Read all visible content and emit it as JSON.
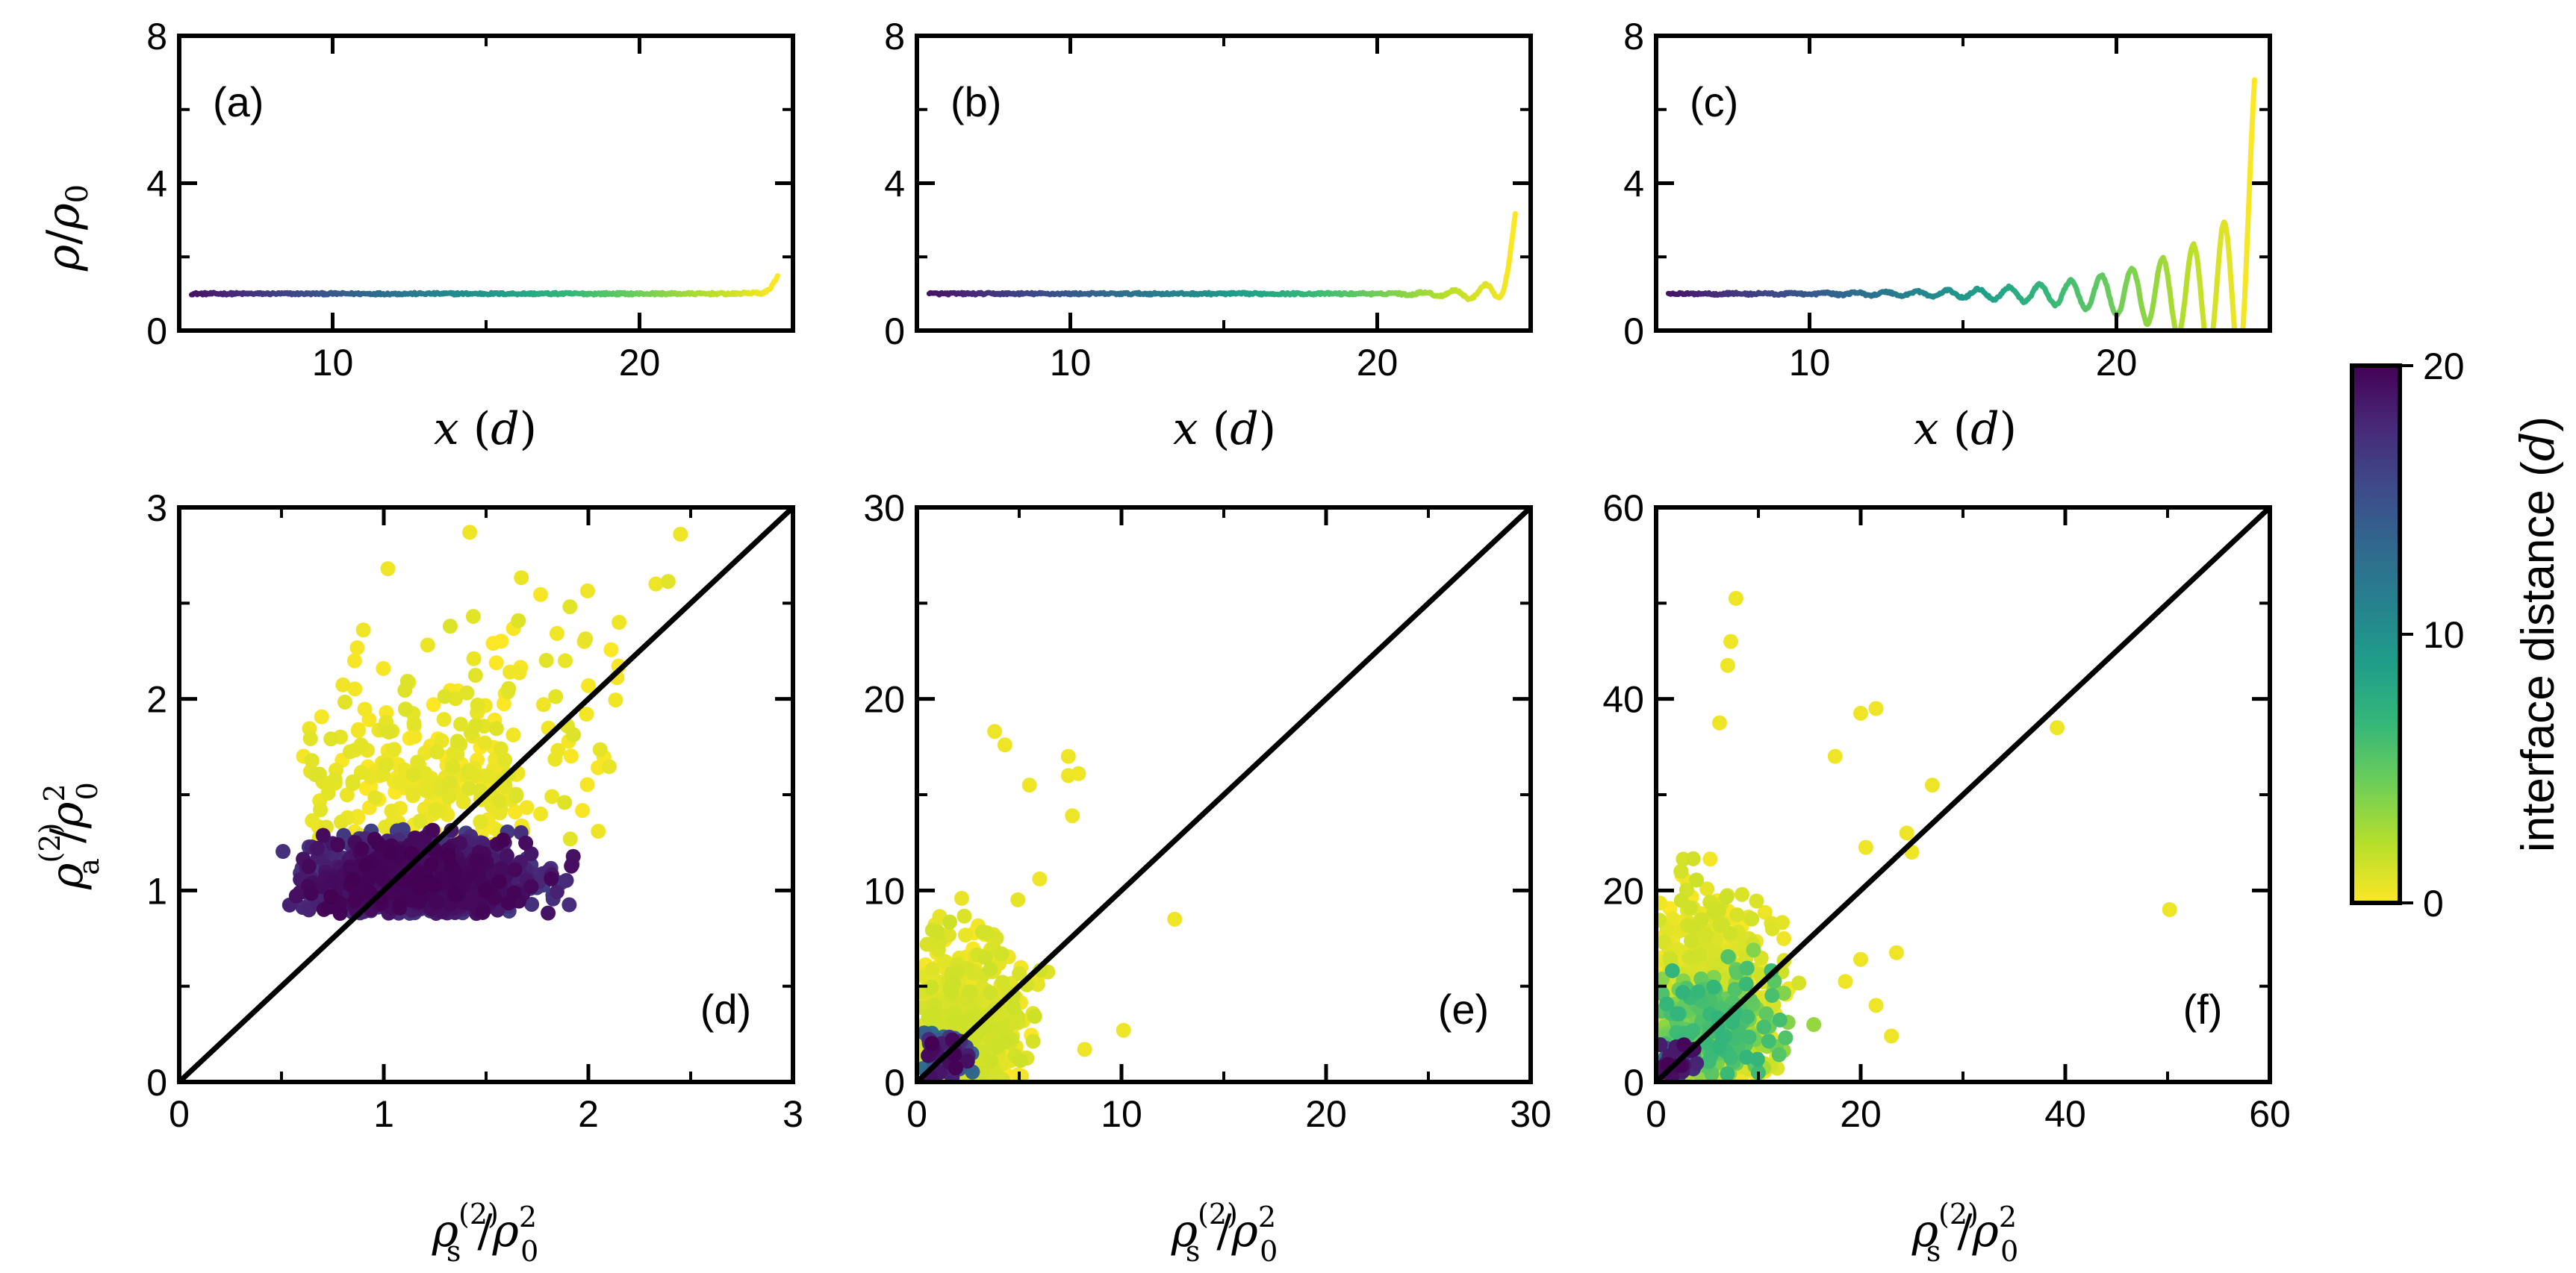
{
  "chart_data": [
    {
      "panel": "(a)",
      "type": "line",
      "xlabel_main": "x",
      "xlabel_unit": "d",
      "ylabel_main": "ρ",
      "ylabel_den": "ρ",
      "ylabel_den_sub": "0",
      "xlim": [
        5,
        25
      ],
      "ylim": [
        0,
        8
      ],
      "xticks": [
        10,
        20
      ],
      "yticks": [
        0,
        4,
        8
      ],
      "profile": {
        "x_start": 5.4,
        "x_end": 24.5,
        "bulk": 1.0,
        "wall_peak": 1.5,
        "osc_amp": 0.1,
        "decay": 0.5
      }
    },
    {
      "panel": "(b)",
      "type": "line",
      "xlabel_main": "x",
      "xlabel_unit": "d",
      "xlim": [
        5,
        25
      ],
      "ylim": [
        0,
        8
      ],
      "xticks": [
        10,
        20
      ],
      "yticks": [
        0,
        4,
        8
      ],
      "profile": {
        "x_start": 5.4,
        "x_end": 24.5,
        "bulk": 1.0,
        "wall_peak": 3.2,
        "osc_amp": 0.5,
        "decay": 1.2
      }
    },
    {
      "panel": "(c)",
      "type": "line",
      "xlabel_main": "x",
      "xlabel_unit": "d",
      "xlim": [
        5,
        25
      ],
      "ylim": [
        0,
        8
      ],
      "xticks": [
        10,
        20
      ],
      "yticks": [
        0,
        4,
        8
      ],
      "profile": {
        "x_start": 5.4,
        "x_end": 24.5,
        "bulk": 1.0,
        "wall_peak": 6.8,
        "osc_amp": 2.6,
        "decay": 3.0
      }
    },
    {
      "panel": "(d)",
      "type": "scatter",
      "xlabel_main": "ρ",
      "xlabel_sub": "s",
      "xlabel_sup": "(2)",
      "xlabel_den": "ρ",
      "xlabel_den_sub": "0",
      "xlabel_den_sup": "2",
      "ylabel_main": "ρ",
      "ylabel_sub": "a",
      "ylabel_sup": "(2)",
      "ylabel_den": "ρ",
      "ylabel_den_sub": "0",
      "ylabel_den_sup": "2",
      "xlim": [
        0,
        3
      ],
      "ylim": [
        0,
        3
      ],
      "xticks": [
        0,
        1,
        2,
        3
      ],
      "yticks": [
        0,
        1,
        2,
        3
      ],
      "diagonal": true,
      "clusters": [
        {
          "n": 1300,
          "cx": 1.18,
          "cy": 1.05,
          "sx": 0.26,
          "sy": 0.11,
          "xmin": 0.5,
          "xmax": 1.95,
          "ymin": 0.88,
          "ymax": 1.32,
          "dmin": 16,
          "dmax": 20
        },
        {
          "n": 260,
          "cx": 1.25,
          "cy": 1.55,
          "sx": 0.35,
          "sy": 0.25,
          "xmin": 0.6,
          "xmax": 2.2,
          "ymin": 1.2,
          "ymax": 2.3,
          "dmin": 0,
          "dmax": 1
        },
        {
          "n": 30,
          "cx": 1.8,
          "cy": 2.2,
          "sx": 0.3,
          "sy": 0.25,
          "xmin": 1.2,
          "xmax": 2.5,
          "ymin": 1.7,
          "ymax": 2.9,
          "dmin": 0,
          "dmax": 1
        }
      ],
      "points": [
        [
          2.45,
          2.86
        ],
        [
          1.42,
          2.87
        ],
        [
          1.02,
          2.68
        ],
        [
          2.33,
          2.6
        ],
        [
          0.9,
          2.36
        ],
        [
          2.15,
          2.4
        ],
        [
          1.98,
          2.3
        ]
      ]
    },
    {
      "panel": "(e)",
      "type": "scatter",
      "xlabel_main": "ρ",
      "xlabel_sub": "s",
      "xlabel_sup": "(2)",
      "xlabel_den": "ρ",
      "xlabel_den_sub": "0",
      "xlabel_den_sup": "2",
      "xlim": [
        0,
        30
      ],
      "ylim": [
        0,
        30
      ],
      "xticks": [
        0,
        10,
        20,
        30
      ],
      "yticks": [
        0,
        10,
        20,
        30
      ],
      "diagonal": true,
      "clusters": [
        {
          "n": 500,
          "cx": 2.2,
          "cy": 3.0,
          "sx": 1.5,
          "sy": 2.3,
          "xmin": 0.1,
          "xmax": 7,
          "ymin": 0.1,
          "ymax": 12,
          "dmin": 0,
          "dmax": 1.5
        },
        {
          "n": 80,
          "cx": 1.3,
          "cy": 1.3,
          "sx": 0.7,
          "sy": 0.7,
          "xmin": 0.2,
          "xmax": 3,
          "ymin": 0.2,
          "ymax": 3,
          "dmin": 12,
          "dmax": 20
        }
      ],
      "points": [
        [
          3.8,
          18.3
        ],
        [
          4.3,
          17.6
        ],
        [
          7.4,
          17.0
        ],
        [
          7.9,
          16.1
        ],
        [
          7.4,
          16.0
        ],
        [
          5.5,
          15.5
        ],
        [
          7.6,
          13.9
        ],
        [
          12.6,
          8.5
        ],
        [
          6.0,
          10.6
        ],
        [
          10.1,
          2.7
        ],
        [
          8.2,
          1.7
        ]
      ]
    },
    {
      "panel": "(f)",
      "type": "scatter",
      "xlabel_main": "ρ",
      "xlabel_sub": "s",
      "xlabel_sup": "(2)",
      "xlabel_den": "ρ",
      "xlabel_den_sub": "0",
      "xlabel_den_sup": "2",
      "xlim": [
        0,
        60
      ],
      "ylim": [
        0,
        60
      ],
      "xticks": [
        0,
        20,
        40,
        60
      ],
      "yticks": [
        0,
        20,
        40,
        60
      ],
      "diagonal": true,
      "clusters": [
        {
          "n": 700,
          "cx": 4.5,
          "cy": 7.0,
          "sx": 3.2,
          "sy": 6.0,
          "xmin": 0.2,
          "xmax": 14,
          "ymin": 0.2,
          "ymax": 26,
          "dmin": 0,
          "dmax": 1.5
        },
        {
          "n": 300,
          "cx": 5.5,
          "cy": 5.5,
          "sx": 3.0,
          "sy": 3.0,
          "xmin": 0.5,
          "xmax": 16,
          "ymin": 0.5,
          "ymax": 16,
          "dmin": 2,
          "dmax": 7
        },
        {
          "n": 60,
          "cx": 2.0,
          "cy": 2.0,
          "sx": 1.0,
          "sy": 1.0,
          "xmin": 0.3,
          "xmax": 4,
          "ymin": 0.3,
          "ymax": 4,
          "dmin": 12,
          "dmax": 20
        }
      ],
      "points": [
        [
          7.8,
          50.5
        ],
        [
          7.3,
          46.0
        ],
        [
          7.0,
          43.5
        ],
        [
          6.2,
          37.5
        ],
        [
          20.0,
          38.5
        ],
        [
          21.5,
          39.0
        ],
        [
          39.2,
          37.0
        ],
        [
          17.5,
          34.0
        ],
        [
          27.0,
          31.0
        ],
        [
          50.2,
          18.0
        ],
        [
          24.5,
          26.0
        ],
        [
          25.0,
          24.0
        ],
        [
          20.5,
          24.5
        ],
        [
          23.5,
          13.5
        ],
        [
          20.0,
          12.8
        ],
        [
          18.5,
          10.5
        ],
        [
          21.5,
          8.0
        ],
        [
          23.0,
          4.8
        ]
      ]
    }
  ],
  "colorbar": {
    "label": "interface distance (",
    "label_unit": "d",
    "label_close": ")",
    "min": 0,
    "max": 20,
    "ticks": [
      "0",
      "10",
      "20"
    ],
    "colors": [
      "#fde725",
      "#b5de2b",
      "#6ece58",
      "#35b779",
      "#1f9e89",
      "#26828e",
      "#31688e",
      "#3e4989",
      "#482878",
      "#440154"
    ]
  }
}
